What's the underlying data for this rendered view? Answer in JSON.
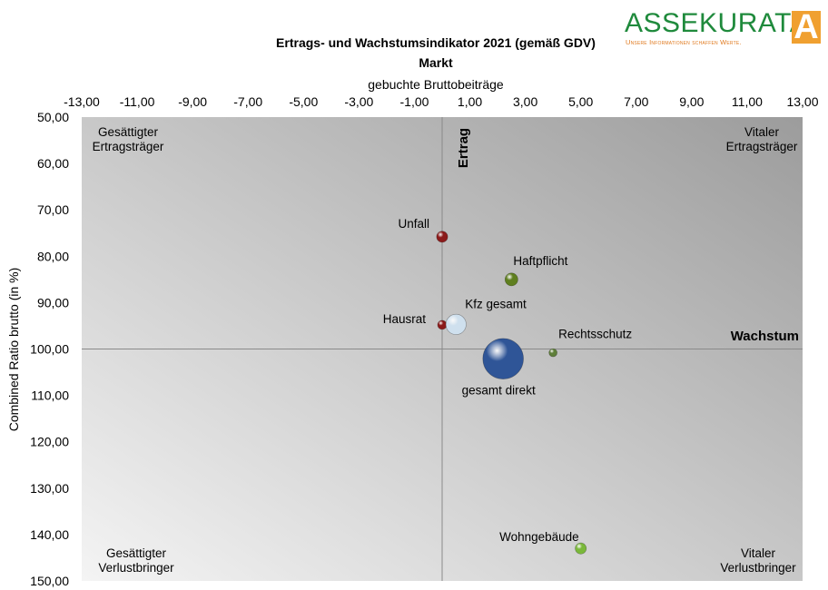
{
  "logo": {
    "name": "ASSEKURATA",
    "tagline": "Unsere Informationen schaffen Werte.",
    "mark": "A",
    "colors": {
      "text": "#1f8a3c",
      "tagline": "#e07a1f",
      "mark": "#f0a030"
    }
  },
  "chart_data": {
    "type": "scatter",
    "title": "Ertrags- und Wachstumsindikator 2021 (gemäß GDV)",
    "subtitle": "Markt",
    "xlabel": "gebuchte Bruttobeiträge",
    "ylabel": "Combined Ratio brutto (in %)",
    "xlim": [
      -13,
      13
    ],
    "ylim": [
      50,
      150
    ],
    "y_inverted": true,
    "x_axis_position": "top",
    "x_ticks": [
      "-13,00",
      "-11,00",
      "-9,00",
      "-7,00",
      "-5,00",
      "-3,00",
      "-1,00",
      "1,00",
      "3,00",
      "5,00",
      "7,00",
      "9,00",
      "11,00",
      "13,00"
    ],
    "y_ticks": [
      "50,00",
      "60,00",
      "70,00",
      "80,00",
      "90,00",
      "100,00",
      "110,00",
      "120,00",
      "130,00",
      "140,00",
      "150,00"
    ],
    "grid": false,
    "reference_lines": {
      "x": 0,
      "y": 100
    },
    "axis_labels_inside": {
      "vertical": "Ertrag",
      "horizontal": "Wachstum"
    },
    "quadrant_labels": {
      "top_left": [
        "Gesättigter",
        "Ertragsträger"
      ],
      "top_right": [
        "Vitaler",
        "Ertragsträger"
      ],
      "bottom_left": [
        "Gesättigter",
        "Verlustbringer"
      ],
      "bottom_right": [
        "Vitaler",
        "Verlustbringer"
      ]
    },
    "points": [
      {
        "label": "Unfall",
        "x": 0.0,
        "y": 75.8,
        "size": 1.5,
        "color": "#8b1a1a",
        "label_pos": "left"
      },
      {
        "label": "Haftpflicht",
        "x": 2.5,
        "y": 85.0,
        "size": 2.0,
        "color": "#5f7f1f",
        "label_pos": "above-right"
      },
      {
        "label": "Hausrat",
        "x": 0.0,
        "y": 94.8,
        "size": 1.0,
        "color": "#8b1a1a",
        "label_pos": "left"
      },
      {
        "label": "Kfz gesamt",
        "x": 0.5,
        "y": 94.7,
        "size": 5.0,
        "color": "#cfe0ee",
        "label_pos": "above-right"
      },
      {
        "label": "Rechtsschutz",
        "x": 4.0,
        "y": 100.8,
        "size": 0.8,
        "color": "#5f7f3a",
        "label_pos": "above-right"
      },
      {
        "label": "gesamt direkt",
        "x": 2.2,
        "y": 102.1,
        "size": 20.0,
        "color": "#2f5597",
        "label_pos": "below"
      },
      {
        "label": "Wohngebäude",
        "x": 5.0,
        "y": 143.0,
        "size": 1.5,
        "color": "#7ab83a",
        "label_pos": "above-left"
      }
    ]
  }
}
